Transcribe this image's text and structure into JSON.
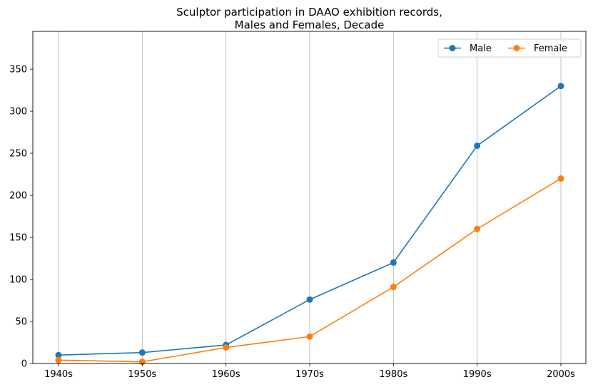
{
  "chart_data": {
    "type": "line",
    "title": [
      "Sculptor participation in DAAO exhibition records,",
      "Males and Females, Decade"
    ],
    "xlabel": "",
    "ylabel": "",
    "categories": [
      "1940s",
      "1950s",
      "1960s",
      "1970s",
      "1980s",
      "1990s",
      "2000s"
    ],
    "series": [
      {
        "name": "Male",
        "values": [
          10,
          13,
          22,
          76,
          120,
          259,
          330
        ],
        "color": "#1f77b4"
      },
      {
        "name": "Female",
        "values": [
          4,
          2,
          19,
          32,
          91,
          160,
          220
        ],
        "color": "#ff7f0e"
      }
    ],
    "ylim": [
      0,
      395
    ],
    "yticks": [
      0,
      50,
      100,
      150,
      200,
      250,
      300,
      350
    ],
    "grid": "vertical",
    "legend": "top-right",
    "marker": "circle"
  }
}
